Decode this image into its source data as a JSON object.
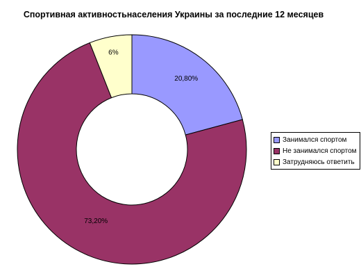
{
  "chart_data": {
    "type": "pie",
    "variant": "donut",
    "title": "Спортивная активностьнаселения Украины за последние 12 месяцев",
    "slices": [
      {
        "label": "Занимался спортом",
        "value": 20.8,
        "value_label": "20,80%",
        "color": "#9999ff"
      },
      {
        "label": "Не занимался спортом",
        "value": 73.2,
        "value_label": "73,20%",
        "color": "#993366"
      },
      {
        "label": "Затрудняюсь ответить",
        "value": 6,
        "value_label": "6%",
        "color": "#ffffcc"
      }
    ],
    "legend_position": "right"
  }
}
